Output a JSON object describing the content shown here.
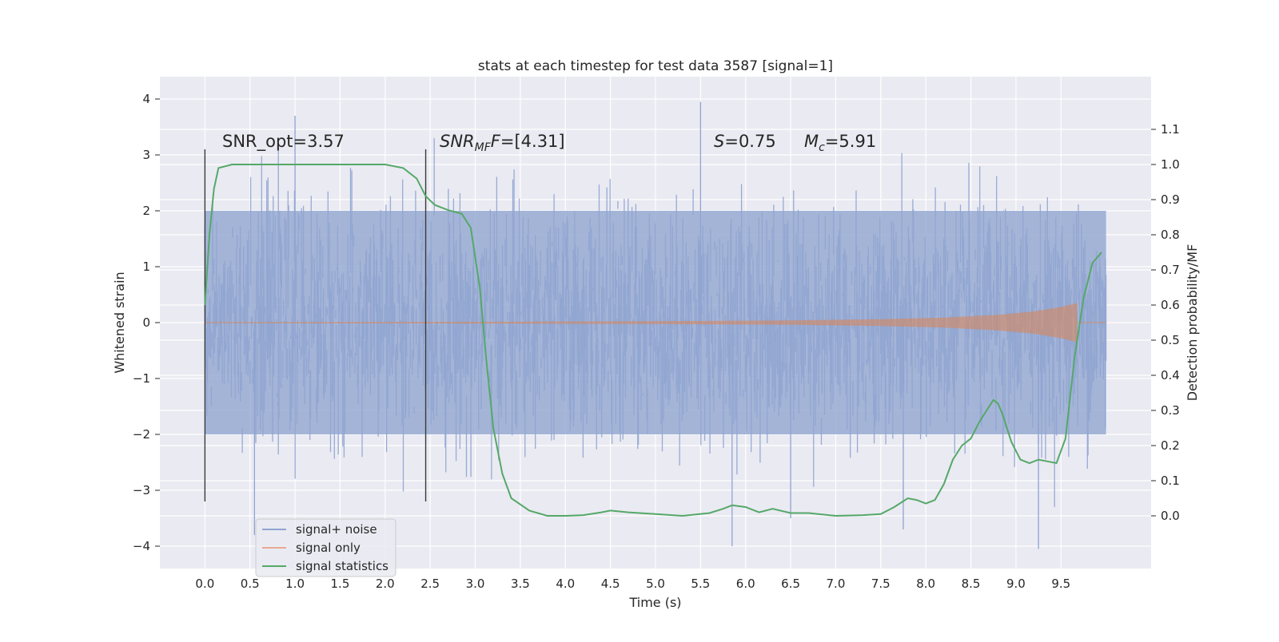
{
  "chart_data": {
    "type": "line",
    "title": "stats at each timestep for test data 3587 [signal=1]",
    "xlabel": "Time (s)",
    "ylabel": "Whitened strain",
    "ylabel_right": "Detection probability/MF",
    "xlim": [
      -0.5,
      10.5
    ],
    "ylim": [
      -4.4,
      4.4
    ],
    "ylim_right": [
      -0.15,
      1.25
    ],
    "xticks": [
      "0.0",
      "0.5",
      "1.0",
      "1.5",
      "2.0",
      "2.5",
      "3.0",
      "3.5",
      "4.0",
      "4.5",
      "5.0",
      "5.5",
      "6.0",
      "6.5",
      "7.0",
      "7.5",
      "8.0",
      "8.5",
      "9.0",
      "9.5"
    ],
    "yticks": [
      "4",
      "3",
      "2",
      "1",
      "0",
      "−1",
      "−2",
      "−3",
      "−4"
    ],
    "yticks_right": [
      "1.1",
      "1.0",
      "0.9",
      "0.8",
      "0.7",
      "0.6",
      "0.5",
      "0.4",
      "0.3",
      "0.2",
      "0.1",
      "0.0"
    ],
    "grid": true,
    "legend_position": "lower-left",
    "annotations": {
      "snr_opt": "SNR_opt=3.57",
      "snr_mf_main": "SNR",
      "snr_mf_sub": "MF",
      "snr_mf_value": "=[4.31]",
      "s_main": "S",
      "s_value": "=0.75",
      "mc_main": "M",
      "mc_sub": "c",
      "mc_value": "=5.91"
    },
    "vertical_lines": [
      {
        "x": 0.0,
        "y_range": [
          -3.2,
          3.1
        ]
      },
      {
        "x": 2.45,
        "y_range": [
          -3.2,
          3.1
        ]
      }
    ],
    "series": [
      {
        "name": "signal+ noise",
        "color": "#8fa4d0",
        "axis": "left",
        "x_range": [
          0.0,
          10.0
        ],
        "envelope_typical": [
          -2.0,
          2.0
        ],
        "envelope_extreme": [
          -4.0,
          4.0
        ],
        "spikes": [
          {
            "x": 0.55,
            "y": -3.8
          },
          {
            "x": 1.0,
            "y": 3.7
          },
          {
            "x": 5.5,
            "y": 3.95
          },
          {
            "x": 5.85,
            "y": -4.0
          },
          {
            "x": 9.25,
            "y": -4.05
          },
          {
            "x": 7.75,
            "y": -3.7
          },
          {
            "x": 6.5,
            "y": -3.5
          }
        ]
      },
      {
        "name": "signal only",
        "color": "#dd8452",
        "axis": "left",
        "x": [
          0.0,
          3.0,
          5.0,
          6.5,
          7.5,
          8.2,
          8.8,
          9.2,
          9.5,
          9.68
        ],
        "amplitude": [
          0.01,
          0.015,
          0.025,
          0.04,
          0.06,
          0.09,
          0.14,
          0.2,
          0.28,
          0.35
        ]
      },
      {
        "name": "signal statistics",
        "color": "#55a868",
        "axis": "right",
        "x": [
          0.0,
          0.05,
          0.1,
          0.15,
          0.3,
          0.6,
          1.0,
          1.5,
          2.0,
          2.2,
          2.35,
          2.45,
          2.55,
          2.7,
          2.85,
          2.95,
          3.05,
          3.12,
          3.2,
          3.3,
          3.4,
          3.6,
          3.8,
          4.0,
          4.2,
          4.4,
          4.5,
          4.7,
          5.0,
          5.3,
          5.6,
          5.75,
          5.85,
          6.0,
          6.15,
          6.3,
          6.5,
          6.7,
          7.0,
          7.3,
          7.5,
          7.65,
          7.8,
          7.9,
          8.0,
          8.1,
          8.2,
          8.3,
          8.4,
          8.5,
          8.6,
          8.7,
          8.75,
          8.8,
          8.85,
          8.95,
          9.05,
          9.15,
          9.25,
          9.35,
          9.45,
          9.55,
          9.65,
          9.75,
          9.85,
          9.95
        ],
        "values": [
          0.6,
          0.8,
          0.93,
          0.99,
          1.0,
          1.0,
          1.0,
          1.0,
          1.0,
          0.99,
          0.96,
          0.91,
          0.885,
          0.87,
          0.86,
          0.82,
          0.65,
          0.45,
          0.25,
          0.12,
          0.05,
          0.015,
          0.0,
          0.0,
          0.002,
          0.01,
          0.015,
          0.01,
          0.005,
          0.0,
          0.008,
          0.02,
          0.03,
          0.025,
          0.01,
          0.02,
          0.008,
          0.008,
          0.0,
          0.002,
          0.005,
          0.025,
          0.05,
          0.045,
          0.035,
          0.045,
          0.09,
          0.16,
          0.2,
          0.22,
          0.27,
          0.31,
          0.33,
          0.32,
          0.29,
          0.21,
          0.16,
          0.15,
          0.16,
          0.155,
          0.15,
          0.22,
          0.45,
          0.62,
          0.72,
          0.75
        ]
      }
    ]
  }
}
